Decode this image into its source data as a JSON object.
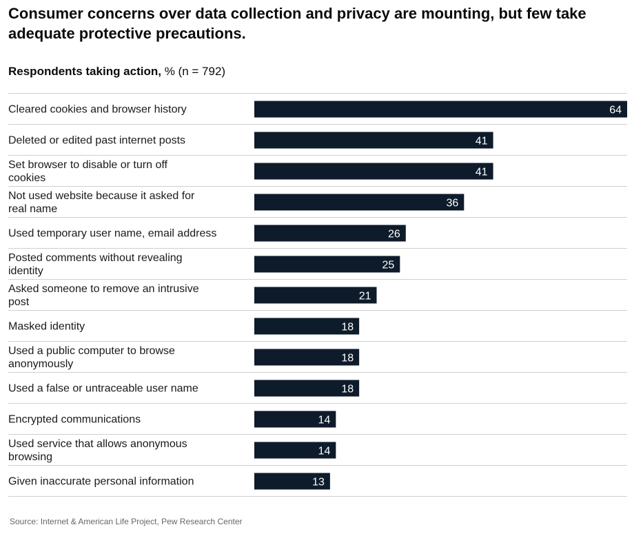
{
  "title": "Consumer concerns over data collection and privacy are mounting, but few take adequate protective precautions.",
  "subtitle_bold": "Respondents taking action,",
  "subtitle_rest": "% (n = 792)",
  "source": "Source: Internet & American Life Project, Pew Research Center",
  "colors": {
    "bar": "#0e1b2b",
    "bar_label": "#ffffff",
    "grid": "#cfcfcf"
  },
  "chart_data": {
    "type": "bar",
    "orientation": "horizontal",
    "title": "Consumer concerns over data collection and privacy are mounting, but few take adequate protective precautions.",
    "subtitle": "Respondents taking action, % (n = 792)",
    "xlabel": "",
    "ylabel": "",
    "xlim": [
      0,
      64
    ],
    "grid": false,
    "legend": "none",
    "categories": [
      "Cleared cookies and browser history",
      "Deleted or edited past internet posts",
      "Set browser to disable or turn off cookies",
      "Not used website because it asked for real name",
      "Used temporary user name, email address",
      "Posted comments without revealing identity",
      "Asked someone to remove an intrusive post",
      "Masked identity",
      "Used a public computer to browse anonymously",
      "Used a false or untraceable user name",
      "Encrypted communications",
      "Used service that allows anonymous browsing",
      "Given inaccurate personal information"
    ],
    "values": [
      64,
      41,
      41,
      36,
      26,
      25,
      21,
      18,
      18,
      18,
      14,
      14,
      13
    ]
  }
}
